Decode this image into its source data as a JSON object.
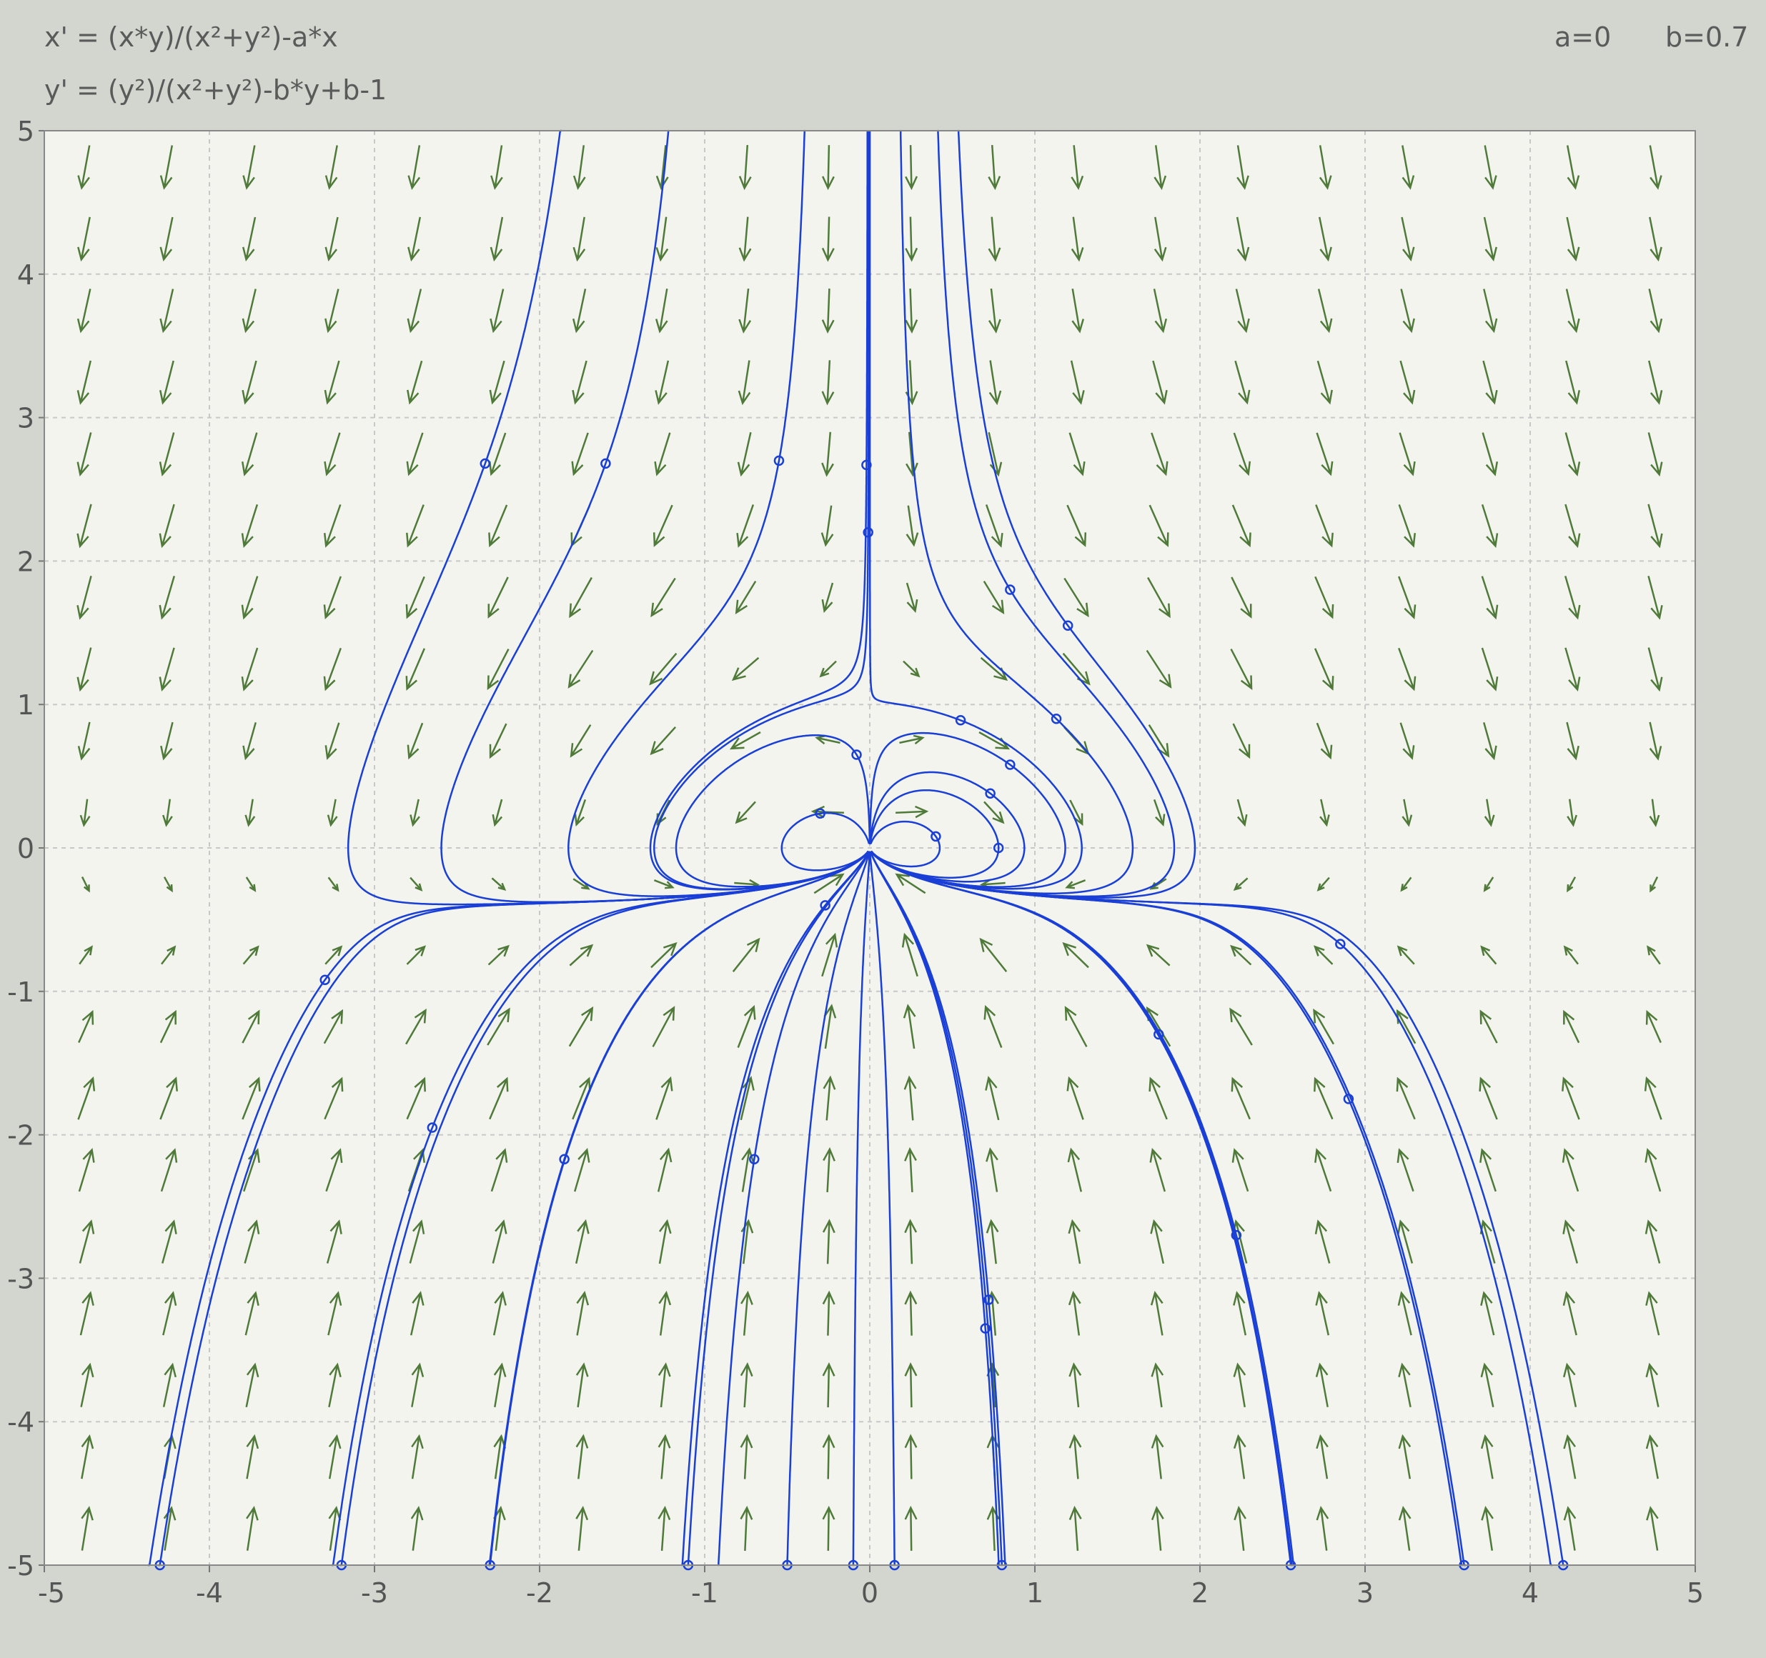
{
  "header": {
    "x_equation": "x' = (x*y)/(x²+y²)-a*x",
    "y_equation": "y' = (y²)/(x²+y²)-b*y+b-1",
    "param_a": "a=0",
    "param_b": "b=0.7"
  },
  "colors": {
    "background": "#d3d6cf",
    "plot_background": "#f3f4ee",
    "grid": "#c8c8c8",
    "vector_arrow": "#4f7a3a",
    "trajectory": "#1a3fd6"
  },
  "chart_data": {
    "type": "vector field (phase portrait)",
    "title": "",
    "xlabel": "",
    "ylabel": "",
    "xlim": [
      -5,
      5
    ],
    "ylim": [
      -5,
      5
    ],
    "x_ticks": [
      "-5",
      "-4",
      "-3",
      "-2",
      "-1",
      "0",
      "1",
      "2",
      "3",
      "4",
      "5"
    ],
    "y_ticks": [
      "5",
      "4",
      "3",
      "2",
      "1",
      "0",
      "-1",
      "-2",
      "-3",
      "-4",
      "-5"
    ],
    "grid": true,
    "params": {
      "a": 0,
      "b": 0.7
    },
    "vector_field": {
      "columns": 20,
      "rows": 20,
      "arrow_length": 0.3
    },
    "trajectories": [
      {
        "x0": -2.33,
        "y0": 2.68
      },
      {
        "x0": -1.6,
        "y0": 2.68
      },
      {
        "x0": -0.55,
        "y0": 2.7
      },
      {
        "x0": -0.02,
        "y0": 2.67
      },
      {
        "x0": -0.01,
        "y0": 2.2
      },
      {
        "x0": 0.85,
        "y0": 1.8
      },
      {
        "x0": 1.2,
        "y0": 1.55
      },
      {
        "x0": 1.13,
        "y0": 0.9
      },
      {
        "x0": 0.55,
        "y0": 0.89
      },
      {
        "x0": 0.85,
        "y0": 0.58
      },
      {
        "x0": 0.73,
        "y0": 0.38
      },
      {
        "x0": -0.08,
        "y0": 0.65
      },
      {
        "x0": -0.3,
        "y0": 0.24
      },
      {
        "x0": 0.4,
        "y0": 0.08
      },
      {
        "x0": 0.78,
        "y0": 0.0
      },
      {
        "x0": -0.27,
        "y0": -0.4
      },
      {
        "x0": -3.3,
        "y0": -0.92
      },
      {
        "x0": 2.85,
        "y0": -0.67
      },
      {
        "x0": -2.65,
        "y0": -1.95
      },
      {
        "x0": -1.85,
        "y0": -2.17
      },
      {
        "x0": -0.7,
        "y0": -2.17
      },
      {
        "x0": 1.75,
        "y0": -1.3
      },
      {
        "x0": 2.9,
        "y0": -1.75
      },
      {
        "x0": 2.22,
        "y0": -2.7
      },
      {
        "x0": 0.72,
        "y0": -3.15
      },
      {
        "x0": 0.7,
        "y0": -3.35
      },
      {
        "x0": -4.3,
        "y0": -5.0
      },
      {
        "x0": -3.2,
        "y0": -5.0
      },
      {
        "x0": -2.3,
        "y0": -5.0
      },
      {
        "x0": -1.1,
        "y0": -5.0
      },
      {
        "x0": -0.5,
        "y0": -5.0
      },
      {
        "x0": -0.1,
        "y0": -5.0
      },
      {
        "x0": 0.15,
        "y0": -5.0
      },
      {
        "x0": 0.8,
        "y0": -5.0
      },
      {
        "x0": 2.55,
        "y0": -5.0
      },
      {
        "x0": 3.6,
        "y0": -5.0
      },
      {
        "x0": 4.2,
        "y0": -5.0
      }
    ]
  }
}
